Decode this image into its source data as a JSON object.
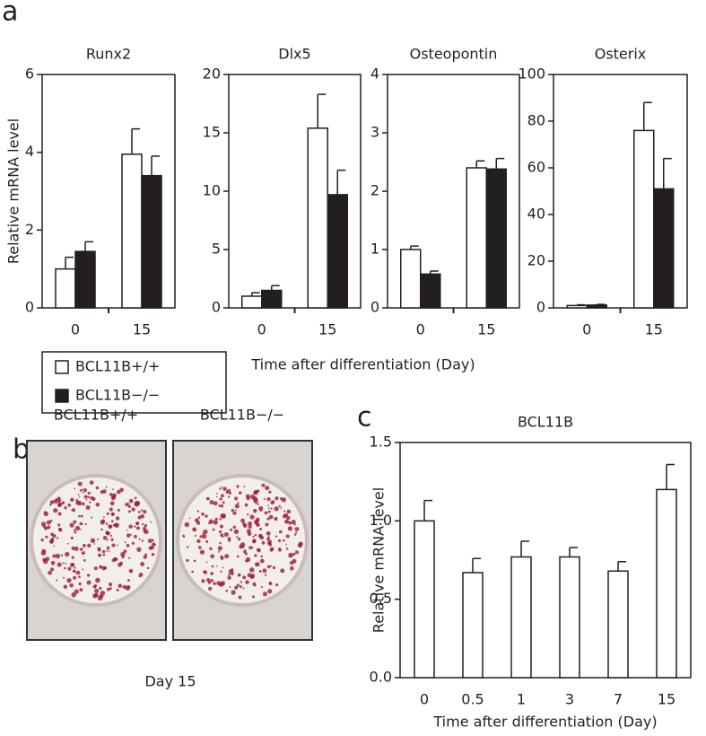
{
  "panel_labels": [
    "a",
    "b",
    "c"
  ],
  "figure_a": {
    "ylabel": "Relative mRNA level",
    "xlabel": "Time after differentiation (Day)"
  },
  "photo_panel": {
    "labels": [
      "BCL11B+/+",
      "BCL11B−/−"
    ],
    "caption": "Day 15"
  },
  "chart_data": [
    {
      "type": "bar",
      "title": "Runx2",
      "categories": [
        "0",
        "15"
      ],
      "series": [
        {
          "name": "BCL11B+/+",
          "color": "#ffffff",
          "values": [
            1.0,
            3.95
          ],
          "errors": [
            0.3,
            0.65
          ]
        },
        {
          "name": "BCL11B−/−",
          "color": "#231f20",
          "values": [
            1.45,
            3.4
          ],
          "errors": [
            0.25,
            0.5
          ]
        }
      ],
      "ylim": [
        0,
        6
      ],
      "yticks": [
        0,
        2,
        4,
        6
      ]
    },
    {
      "type": "bar",
      "title": "Dlx5",
      "categories": [
        "0",
        "15"
      ],
      "series": [
        {
          "color": "#ffffff",
          "values": [
            1.0,
            15.4
          ],
          "errors": [
            0.3,
            2.9
          ]
        },
        {
          "color": "#231f20",
          "values": [
            1.5,
            9.7
          ],
          "errors": [
            0.4,
            2.1
          ]
        }
      ],
      "ylim": [
        0,
        20
      ],
      "yticks": [
        0,
        5,
        10,
        15,
        20
      ]
    },
    {
      "type": "bar",
      "title": "Osteopontin",
      "categories": [
        "0",
        "15"
      ],
      "series": [
        {
          "color": "#ffffff",
          "values": [
            1.0,
            2.4
          ],
          "errors": [
            0.06,
            0.12
          ]
        },
        {
          "color": "#231f20",
          "values": [
            0.58,
            2.38
          ],
          "errors": [
            0.05,
            0.18
          ]
        }
      ],
      "ylim": [
        0,
        4
      ],
      "yticks": [
        0,
        1,
        2,
        3,
        4
      ]
    },
    {
      "type": "bar",
      "title": "Osterix",
      "categories": [
        "0",
        "15"
      ],
      "series": [
        {
          "color": "#ffffff",
          "values": [
            1.0,
            76
          ],
          "errors": [
            0.3,
            12
          ]
        },
        {
          "color": "#231f20",
          "values": [
            1.2,
            51
          ],
          "errors": [
            0.3,
            13
          ]
        }
      ],
      "ylim": [
        0,
        100
      ],
      "yticks": [
        0,
        20,
        40,
        60,
        80,
        100
      ]
    },
    {
      "type": "bar",
      "title": "BCL11B",
      "ylabel": "Relative mRNA level",
      "xlabel": "Time after differentiation (Day)",
      "categories": [
        "0",
        "0.5",
        "1",
        "3",
        "7",
        "15"
      ],
      "series": [
        {
          "color": "#ffffff",
          "values": [
            1.0,
            0.67,
            0.77,
            0.77,
            0.68,
            1.2
          ],
          "errors": [
            0.13,
            0.09,
            0.1,
            0.06,
            0.06,
            0.16
          ]
        }
      ],
      "ylim": [
        0,
        1.5
      ],
      "yticks": [
        {
          "value": 0,
          "label": "0.0"
        },
        0.5,
        {
          "value": 1,
          "label": "1.0"
        },
        1.5
      ]
    }
  ]
}
